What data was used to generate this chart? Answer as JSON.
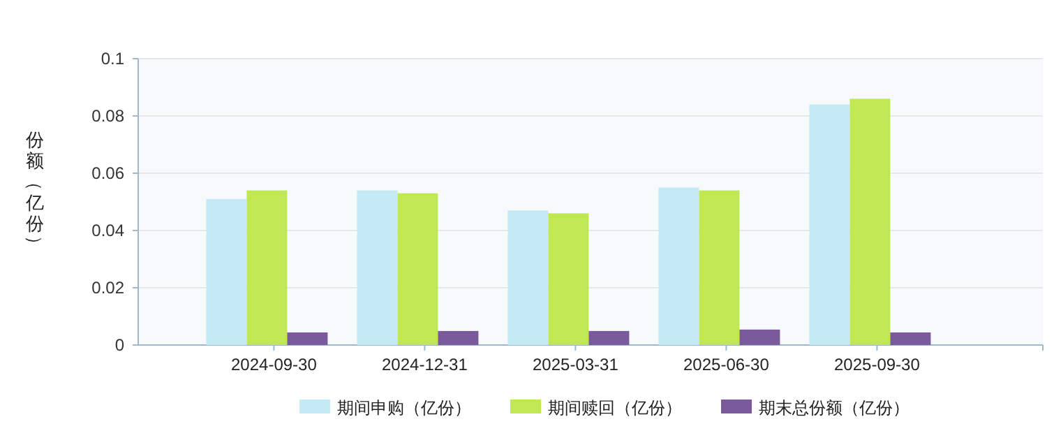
{
  "chart_data": {
    "type": "bar",
    "ylabel": "份额（亿份）",
    "categories": [
      "2024-09-30",
      "2024-12-31",
      "2025-03-31",
      "2025-06-30",
      "2025-09-30"
    ],
    "series": [
      {
        "name": "期间申购（亿份）",
        "color": "#c4eaf6",
        "values": [
          0.051,
          0.054,
          0.047,
          0.055,
          0.084
        ]
      },
      {
        "name": "期间赎回（亿份）",
        "color": "#bfe853",
        "values": [
          0.054,
          0.053,
          0.046,
          0.054,
          0.086
        ]
      },
      {
        "name": "期末总份额（亿份）",
        "color": "#7b5a9c",
        "values": [
          0.0044,
          0.0049,
          0.0049,
          0.0054,
          0.0044
        ]
      }
    ],
    "ylim": [
      0,
      0.1
    ],
    "yticks": [
      0,
      0.02,
      0.04,
      0.06,
      0.08,
      0.1
    ],
    "grid": "y",
    "legend": "bottom"
  }
}
